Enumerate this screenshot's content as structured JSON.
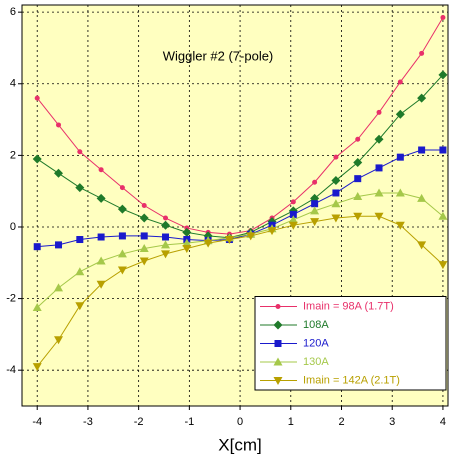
{
  "chart_data": {
    "type": "line",
    "title": "Wiggler #2 (7-pole)",
    "x_label": "X[cm]",
    "x": [
      -4,
      -3.58,
      -3.16,
      -2.74,
      -2.32,
      -1.89,
      -1.47,
      -1.05,
      -0.63,
      -0.21,
      0.21,
      0.63,
      1.05,
      1.47,
      1.89,
      2.32,
      2.74,
      3.16,
      3.58,
      4.0
    ],
    "series": [
      {
        "name": "Imain = 98A (1.7T)",
        "color": "#e8306a",
        "marker": "circle",
        "values": [
          3.6,
          2.85,
          2.1,
          1.6,
          1.1,
          0.6,
          0.25,
          -0.03,
          -0.15,
          -0.2,
          -0.1,
          0.25,
          0.7,
          1.25,
          1.95,
          2.45,
          3.2,
          4.05,
          4.85,
          5.85
        ]
      },
      {
        "name": "108A",
        "color": "#1f7a2a",
        "marker": "diamond",
        "values": [
          1.9,
          1.5,
          1.1,
          0.8,
          0.5,
          0.25,
          0.05,
          -0.15,
          -0.25,
          -0.3,
          -0.15,
          0.15,
          0.45,
          0.8,
          1.3,
          1.8,
          2.45,
          3.15,
          3.6,
          4.25
        ]
      },
      {
        "name": "120A",
        "color": "#1a1acc",
        "marker": "square",
        "values": [
          -0.55,
          -0.5,
          -0.35,
          -0.28,
          -0.25,
          -0.25,
          -0.28,
          -0.35,
          -0.38,
          -0.35,
          -0.2,
          0.05,
          0.35,
          0.65,
          0.95,
          1.35,
          1.65,
          1.95,
          2.15,
          2.15
        ]
      },
      {
        "name": "130A",
        "color": "#a5c84a",
        "marker": "triangle-up",
        "values": [
          -2.25,
          -1.7,
          -1.25,
          -0.95,
          -0.75,
          -0.6,
          -0.5,
          -0.45,
          -0.38,
          -0.3,
          -0.2,
          -0.05,
          0.2,
          0.45,
          0.65,
          0.85,
          0.95,
          0.95,
          0.8,
          0.3
        ]
      },
      {
        "name": "Imain = 142A (2.1T)",
        "color": "#b8a000",
        "marker": "triangle-down",
        "values": [
          -3.9,
          -3.15,
          -2.2,
          -1.6,
          -1.2,
          -0.95,
          -0.75,
          -0.6,
          -0.45,
          -0.35,
          -0.25,
          -0.1,
          0.05,
          0.15,
          0.25,
          0.3,
          0.3,
          0.05,
          -0.5,
          -1.05
        ]
      }
    ],
    "xlim": [
      -4.3,
      4.1
    ],
    "ylim": [
      -5,
      6.2
    ],
    "xticks": [
      -4,
      -3,
      -2,
      -1,
      0,
      1,
      2,
      3,
      4
    ],
    "yticks": [
      -4,
      -2,
      0,
      2,
      4,
      6
    ],
    "grid": true,
    "legend": "lower right"
  }
}
